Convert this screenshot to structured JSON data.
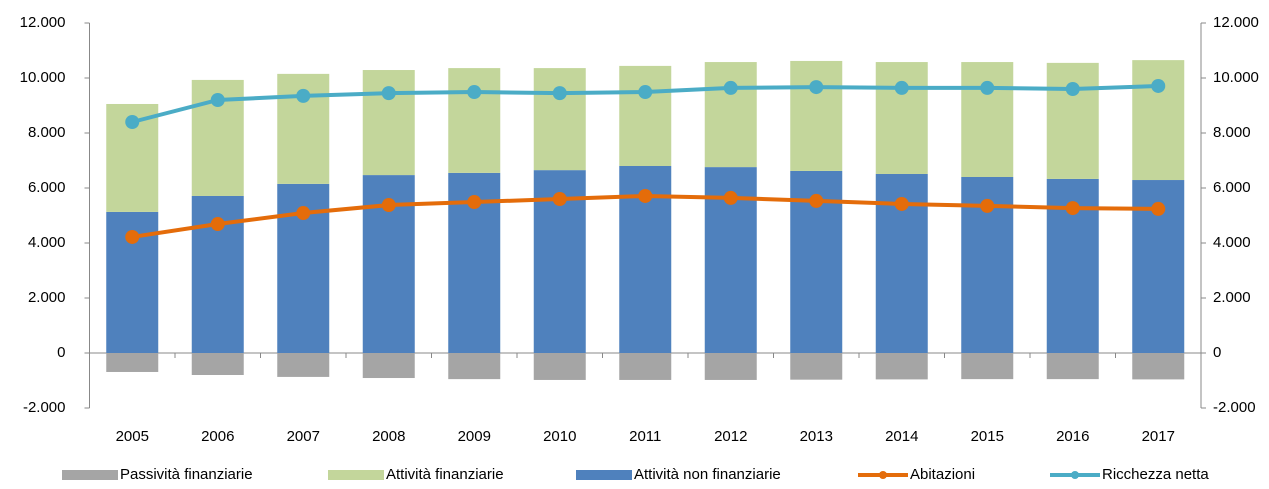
{
  "chart_data": {
    "type": "bar",
    "categories": [
      "2005",
      "2006",
      "2007",
      "2008",
      "2009",
      "2010",
      "2011",
      "2012",
      "2013",
      "2014",
      "2015",
      "2016",
      "2017"
    ],
    "series": [
      {
        "name": "Passività finanziarie",
        "type": "bar",
        "color": "#a5a5a5",
        "values": [
          -690,
          -800,
          -870,
          -910,
          -950,
          -980,
          -980,
          -980,
          -970,
          -960,
          -950,
          -950,
          -960
        ]
      },
      {
        "name": "Attività finanziarie",
        "type": "bar",
        "color": "#c3d69b",
        "values": [
          3925,
          4220,
          4000,
          3820,
          3810,
          3710,
          3640,
          3820,
          4000,
          4070,
          4180,
          4220,
          4360
        ]
      },
      {
        "name": "Attività non finanziarie",
        "type": "bar",
        "color": "#4f81bd",
        "values": [
          5130,
          5710,
          6150,
          6470,
          6550,
          6650,
          6800,
          6760,
          6620,
          6510,
          6400,
          6330,
          6290
        ]
      },
      {
        "name": "Abitazioni",
        "type": "line",
        "axis": "y2",
        "color": "#e46c0a",
        "values": [
          4220,
          4690,
          5090,
          5380,
          5490,
          5600,
          5710,
          5640,
          5530,
          5420,
          5350,
          5270,
          5240
        ]
      },
      {
        "name": "Ricchezza netta",
        "type": "line",
        "axis": "y2",
        "color": "#4bacc6",
        "values": [
          8400,
          9200,
          9350,
          9450,
          9490,
          9450,
          9490,
          9640,
          9670,
          9640,
          9640,
          9600,
          9710
        ]
      }
    ],
    "ylim": [
      -2000,
      12000
    ],
    "yticks": [
      {
        "value": -2000,
        "label": "-2.000"
      },
      0,
      {
        "value": 2000,
        "label": "2.000"
      },
      {
        "value": 4000,
        "label": "4.000"
      },
      {
        "value": 6000,
        "label": "6.000"
      },
      {
        "value": 8000,
        "label": "8.000"
      },
      {
        "value": 10000,
        "label": "10.000"
      },
      {
        "value": 12000,
        "label": "12.000"
      }
    ],
    "y2lim": [
      -2000,
      12000
    ],
    "y2ticks": [
      {
        "value": -2000,
        "label": "-2.000"
      },
      0,
      {
        "value": 2000,
        "label": "2.000"
      },
      {
        "value": 4000,
        "label": "4.000"
      },
      {
        "value": 6000,
        "label": "6.000"
      },
      {
        "value": 8000,
        "label": "8.000"
      },
      {
        "value": 10000,
        "label": "10.000"
      },
      {
        "value": 12000,
        "label": "12.000"
      }
    ],
    "grid": false,
    "legend": "bottom"
  }
}
